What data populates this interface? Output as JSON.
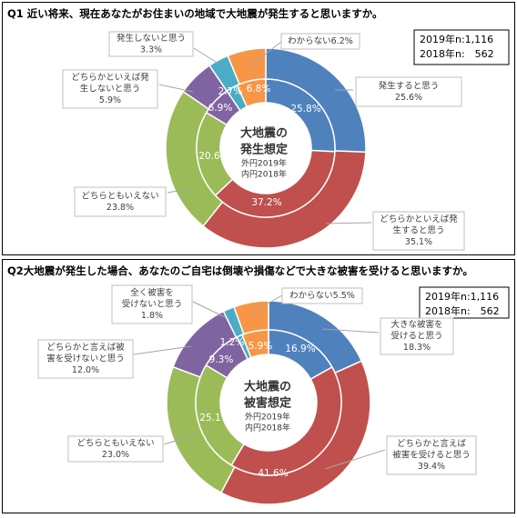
{
  "chart_data": [
    {
      "type": "donut",
      "question": "Q1 近い将来、現在あなたがお住まいの地域で大地震が発生すると思いますか。",
      "center": {
        "line1": "大地震の",
        "line2": "発生想定",
        "sub1": "外円2019年",
        "sub2": "内円2018年"
      },
      "sample": {
        "line1": "2019年n:1,116",
        "line2": "2018年n:　562"
      },
      "categories": [
        "発生すると思う",
        "どちらかといえば発生すると思う",
        "どちらともいえない",
        "どちらかといえば発生しないと思う",
        "発生しないと思う",
        "わからない"
      ],
      "colors": [
        "#4f81bd",
        "#c0504d",
        "#9bbb59",
        "#8064a2",
        "#4bacc6",
        "#f79646"
      ],
      "series": [
        {
          "name": "外円2019年",
          "values": [
            25.6,
            35.1,
            23.8,
            5.9,
            3.3,
            6.2
          ]
        },
        {
          "name": "内円2018年",
          "values": [
            25.8,
            37.2,
            20.6,
            6.9,
            2.7,
            6.8
          ]
        }
      ],
      "inner_labels": [
        "25.8%",
        "37.2%",
        "20.6%",
        "6.9%",
        "2.7%",
        "6.8%"
      ],
      "callouts": [
        {
          "lines": [
            "発生すると思う",
            "25.6%"
          ]
        },
        {
          "lines": [
            "どちらかといえば発",
            "生すると思う",
            "35.1%"
          ]
        },
        {
          "lines": [
            "どちらともいえない",
            "23.8%"
          ]
        },
        {
          "lines": [
            "どちらかといえば発",
            "生しないと思う",
            "5.9%"
          ]
        },
        {
          "lines": [
            "発生しないと思う",
            "3.3%"
          ]
        },
        {
          "lines": [
            "わからない6.2%"
          ]
        }
      ]
    },
    {
      "type": "donut",
      "question": "Q2大地震が発生した場合、あなたのご自宅は倒壊や損傷などで大きな被害を受けると思いますか。",
      "center": {
        "line1": "大地震の",
        "line2": "被害想定",
        "sub1": "外円2019年",
        "sub2": "内円2018年"
      },
      "sample": {
        "line1": "2019年n:1,116",
        "line2": "2018年n:　562"
      },
      "categories": [
        "大きな被害を受けると思う",
        "どちらかと言えば被害を受けると思う",
        "どちらともいえない",
        "どちらかと言えば被害を受けないと思う",
        "全く被害を受けないと思う",
        "わからない"
      ],
      "colors": [
        "#4f81bd",
        "#c0504d",
        "#9bbb59",
        "#8064a2",
        "#4bacc6",
        "#f79646"
      ],
      "series": [
        {
          "name": "外円2019年",
          "values": [
            18.3,
            39.4,
            23.0,
            12.0,
            1.8,
            5.5
          ]
        },
        {
          "name": "内円2018年",
          "values": [
            16.9,
            41.6,
            25.1,
            9.3,
            1.2,
            5.9
          ]
        }
      ],
      "inner_labels": [
        "16.9%",
        "41.6%",
        "25.1%",
        "9.3%",
        "1.2%",
        "5.9%"
      ],
      "callouts": [
        {
          "lines": [
            "大きな被害を",
            "受けると思う",
            "18.3%"
          ]
        },
        {
          "lines": [
            "どちらかと言えば",
            "被害を受けると思う",
            "39.4%"
          ]
        },
        {
          "lines": [
            "どちらともいえない",
            "23.0%"
          ]
        },
        {
          "lines": [
            "どちらかと言えば被",
            "害を受けないと思う",
            "12.0%"
          ]
        },
        {
          "lines": [
            "全く被害を",
            "受けないと思う",
            "1.8%"
          ]
        },
        {
          "lines": [
            "わからない5.5%"
          ]
        }
      ]
    }
  ]
}
